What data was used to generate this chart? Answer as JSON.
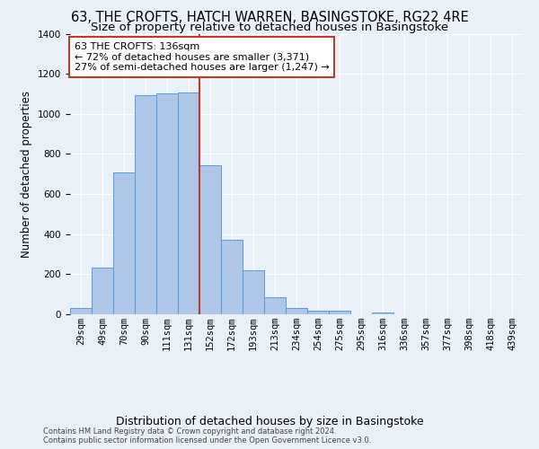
{
  "title1": "63, THE CROFTS, HATCH WARREN, BASINGSTOKE, RG22 4RE",
  "title2": "Size of property relative to detached houses in Basingstoke",
  "xlabel": "Distribution of detached houses by size in Basingstoke",
  "ylabel": "Number of detached properties",
  "categories": [
    "29sqm",
    "49sqm",
    "70sqm",
    "90sqm",
    "111sqm",
    "131sqm",
    "152sqm",
    "172sqm",
    "193sqm",
    "213sqm",
    "234sqm",
    "254sqm",
    "275sqm",
    "295sqm",
    "316sqm",
    "336sqm",
    "357sqm",
    "377sqm",
    "398sqm",
    "418sqm",
    "439sqm"
  ],
  "values": [
    30,
    235,
    710,
    1095,
    1100,
    1105,
    745,
    370,
    220,
    85,
    30,
    20,
    20,
    0,
    10,
    0,
    0,
    0,
    0,
    0,
    0
  ],
  "bar_color": "#aec6e8",
  "bar_edge_color": "#5b9bd5",
  "highlight_bar_index": 5,
  "red_line_color": "#c0392b",
  "red_line_index": 5,
  "annotation_text": "63 THE CROFTS: 136sqm\n← 72% of detached houses are smaller (3,371)\n27% of semi-detached houses are larger (1,247) →",
  "annotation_box_color": "#ffffff",
  "annotation_box_edge_color": "#c0392b",
  "footer1": "Contains HM Land Registry data © Crown copyright and database right 2024.",
  "footer2": "Contains public sector information licensed under the Open Government Licence v3.0.",
  "ylim": [
    0,
    1400
  ],
  "background_color": "#eaf0f8",
  "grid_color": "#ffffff",
  "title_fontsize": 10.5,
  "subtitle_fontsize": 9.5,
  "tick_fontsize": 7.5,
  "ylabel_fontsize": 8.5,
  "xlabel_fontsize": 9
}
